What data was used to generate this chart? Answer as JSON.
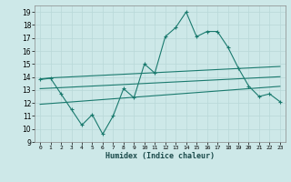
{
  "x": [
    0,
    1,
    2,
    3,
    4,
    5,
    6,
    7,
    8,
    9,
    10,
    11,
    12,
    13,
    14,
    15,
    16,
    17,
    18,
    19,
    20,
    21,
    22,
    23
  ],
  "y_main": [
    13.8,
    13.9,
    12.7,
    11.5,
    10.3,
    11.1,
    9.6,
    11.0,
    13.1,
    12.4,
    15.0,
    14.3,
    17.1,
    17.8,
    19.0,
    17.1,
    17.5,
    17.5,
    16.3,
    14.7,
    13.3,
    12.5,
    12.7,
    12.1
  ],
  "y_upper": [
    13.85,
    13.93,
    13.97,
    14.01,
    14.05,
    14.09,
    14.13,
    14.17,
    14.21,
    14.25,
    14.29,
    14.33,
    14.37,
    14.41,
    14.45,
    14.49,
    14.53,
    14.57,
    14.61,
    14.65,
    14.69,
    14.73,
    14.77,
    14.81
  ],
  "y_mid": [
    13.1,
    13.14,
    13.18,
    13.22,
    13.26,
    13.3,
    13.34,
    13.38,
    13.42,
    13.46,
    13.5,
    13.54,
    13.58,
    13.62,
    13.66,
    13.7,
    13.74,
    13.78,
    13.82,
    13.86,
    13.9,
    13.94,
    13.98,
    14.02
  ],
  "y_lower": [
    11.9,
    11.96,
    12.02,
    12.08,
    12.14,
    12.2,
    12.26,
    12.32,
    12.38,
    12.44,
    12.5,
    12.56,
    12.62,
    12.68,
    12.74,
    12.8,
    12.86,
    12.92,
    12.98,
    13.04,
    13.1,
    13.16,
    13.22,
    13.28
  ],
  "color": "#1a7a6e",
  "bg_color": "#cde8e8",
  "grid_color": "#b8d8d8",
  "xlabel": "Humidex (Indice chaleur)",
  "ylim": [
    9,
    19.5
  ],
  "yticks": [
    9,
    10,
    11,
    12,
    13,
    14,
    15,
    16,
    17,
    18,
    19
  ],
  "xticks": [
    0,
    1,
    2,
    3,
    4,
    5,
    6,
    7,
    8,
    9,
    10,
    11,
    12,
    13,
    14,
    15,
    16,
    17,
    18,
    19,
    20,
    21,
    22,
    23
  ],
  "xticklabels": [
    "0",
    "1",
    "2",
    "3",
    "4",
    "5",
    "6",
    "7",
    "8",
    "9",
    "10",
    "11",
    "12",
    "13",
    "14",
    "15",
    "16",
    "17",
    "18",
    "19",
    "20",
    "21",
    "22",
    "23"
  ]
}
